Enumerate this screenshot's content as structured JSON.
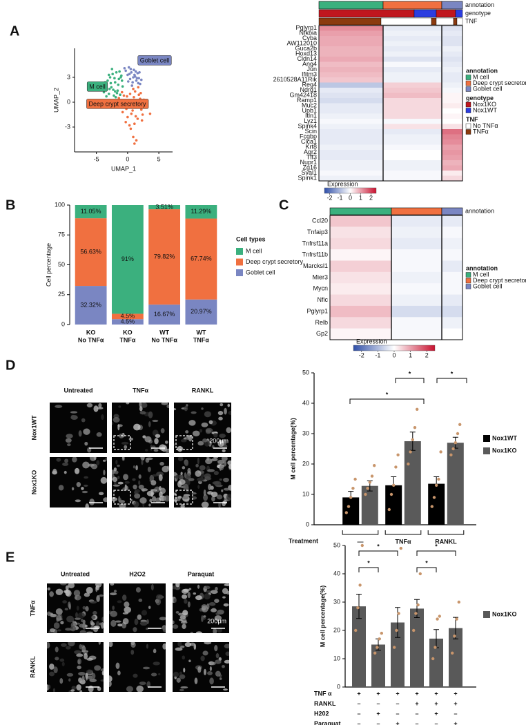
{
  "panel_labels": [
    "A",
    "B",
    "C",
    "D",
    "E"
  ],
  "micrographs": [
    {
      "columns": [
        "Untreated",
        "TNFα",
        "RANKL"
      ],
      "rows": [
        "Nox1WT",
        "Nox1KO"
      ],
      "scale_bar": "200μm"
    },
    {
      "columns": [
        "Untreated",
        "H2O2",
        "Paraquat"
      ],
      "rows": [
        "TNFα",
        "RANKL"
      ],
      "scale_bar": "200μm"
    }
  ],
  "chart_data": [
    {
      "type": "scatter",
      "xlabel": "UMAP_1",
      "ylabel": "UMAP_2",
      "xlim": [
        -8.5,
        7.2
      ],
      "ylim": [
        -6,
        6.5
      ],
      "xticks": [
        -5,
        0,
        5
      ],
      "yticks": [
        -3,
        0,
        3
      ],
      "series": [
        {
          "name": "M cell",
          "color": "#3bb07e",
          "x": [
            -3.8,
            -3.5,
            -3.2,
            -3,
            -2.8,
            -2.6,
            -2.4,
            -2.2,
            -2,
            -1.8,
            -1.6,
            -1.4,
            -1.2,
            -1,
            -0.8,
            -3.4,
            -3,
            -2.7,
            -2.3,
            -2.1,
            -1.9,
            -1.5,
            -1.3,
            -0.9,
            -2.5,
            -2.9,
            -1.7,
            -1.1,
            -3.6,
            -2
          ],
          "y": [
            1.2,
            2.0,
            2.6,
            1.0,
            3.0,
            1.8,
            3.4,
            0.8,
            2.4,
            3.6,
            1.4,
            2.8,
            0.9,
            3.2,
            1.9,
            0.7,
            3.3,
            2.3,
            1.5,
            2.9,
            0.6,
            2.1,
            3.7,
            2.6,
            4.0,
            1.6,
            1.1,
            3.0,
            2.4,
            1.3
          ]
        },
        {
          "name": "Deep crypt secretory",
          "color": "#f07040",
          "x": [
            -1.4,
            -1,
            -0.6,
            -0.2,
            0.2,
            0.6,
            1,
            1.4,
            1.8,
            2.2,
            2.6,
            -1.2,
            -0.8,
            -0.4,
            0,
            0.4,
            0.8,
            1.2,
            1.6,
            2,
            2.4,
            -0.9,
            -0.3,
            0.3,
            0.9,
            1.5,
            2.1,
            2.8,
            0.5,
            1.1,
            1.7,
            -0.1,
            0.7,
            1.3,
            0.9,
            1.1,
            1.4,
            2.3,
            3.6
          ],
          "y": [
            0.5,
            -0.2,
            0.8,
            -0.8,
            0.2,
            -1.4,
            0.6,
            -0.4,
            0.9,
            -0.9,
            0.3,
            -0.6,
            -1.2,
            0.1,
            -1.8,
            1.0,
            -1.0,
            1.3,
            -2.0,
            0.4,
            -1.5,
            1.2,
            -2.4,
            -2.8,
            1.6,
            -0.1,
            1.1,
            -0.3,
            -3.2,
            -2.6,
            1.8,
            0.7,
            2.0,
            -1.7,
            -4.2,
            -5.0,
            -4.6,
            -2.2,
            -1.4
          ]
        },
        {
          "name": "Goblet cell",
          "color": "#7a86c2",
          "x": [
            -0.3,
            0,
            0.2,
            0.4,
            0.6,
            0.8,
            1,
            1.2,
            1.4,
            1.6,
            1.8,
            2,
            0.1,
            0.5,
            0.9,
            1.3,
            1.7,
            2.2,
            0.3,
            0.7,
            1.1,
            1.5,
            1.9,
            -0.5
          ],
          "y": [
            3.8,
            3.3,
            4.2,
            2.8,
            3.6,
            2.4,
            3.9,
            3.1,
            2.6,
            3.5,
            2.9,
            2.2,
            2.5,
            4.0,
            3.0,
            3.7,
            2.3,
            2.7,
            3.4,
            2.0,
            3.3,
            2.9,
            3.6,
            4.1
          ]
        }
      ]
    },
    {
      "type": "heatmap",
      "columns_title": "annotation",
      "columns": [
        {
          "name": "M cell",
          "color": "#3bb07e"
        },
        {
          "name": "Deep crypt secretory",
          "color": "#f07040"
        },
        {
          "name": "Goblet cell",
          "color": "#7a86c2"
        }
      ],
      "genotype": {
        "title": "genotype",
        "items": [
          {
            "name": "Nox1KO",
            "color": "#c0161e"
          },
          {
            "name": "Nox1WT",
            "color": "#2b3de0"
          }
        ]
      },
      "tnf": {
        "title": "TNF",
        "items": [
          {
            "name": "No TNFα",
            "color": "#ffffff"
          },
          {
            "name": "TNFα",
            "color": "#8b3a0f"
          }
        ]
      },
      "rows": [
        "Pglyrp1",
        "Nfkbia",
        "Cyba",
        "AW112010",
        "Guca2b",
        "Hoxd13",
        "Cldn14",
        "Ang4",
        "Jun",
        "Ifitm3",
        "2610528A11Rik",
        "Reg4",
        "Ndrg1",
        "Gm42418",
        "Ramp1",
        "Muc2",
        "Upb1",
        "Itln1",
        "Lyz1",
        "Spink4",
        "Scin",
        "Fcgbp",
        "Clca1",
        "Krt8",
        "Agr2",
        "Tff3",
        "Nupr1",
        "Zg16",
        "Sval1",
        "Spink1"
      ],
      "values": [
        [
          1.2,
          -0.3,
          -0.4
        ],
        [
          1.0,
          -0.2,
          -0.3
        ],
        [
          0.9,
          -0.3,
          -0.4
        ],
        [
          0.9,
          -0.2,
          -0.4
        ],
        [
          0.8,
          -0.3,
          -0.2
        ],
        [
          0.8,
          -0.2,
          -0.3
        ],
        [
          0.9,
          -0.4,
          -0.4
        ],
        [
          0.7,
          -0.1,
          -0.3
        ],
        [
          0.8,
          -0.3,
          -0.2
        ],
        [
          0.7,
          -0.2,
          -0.3
        ],
        [
          0.6,
          -0.2,
          -0.3
        ],
        [
          -0.8,
          0.5,
          -0.2
        ],
        [
          -0.3,
          0.6,
          -0.1
        ],
        [
          -0.4,
          0.7,
          0.1
        ],
        [
          -0.5,
          0.4,
          0.1
        ],
        [
          -0.3,
          0.4,
          0.2
        ],
        [
          -0.3,
          0.4,
          0.0
        ],
        [
          -0.2,
          0.4,
          0.1
        ],
        [
          -0.1,
          -0.1,
          0.0
        ],
        [
          -0.2,
          0.3,
          0.3
        ],
        [
          -0.3,
          -0.3,
          1.5
        ],
        [
          -0.3,
          -0.2,
          1.3
        ],
        [
          -0.3,
          -0.2,
          1.2
        ],
        [
          -0.2,
          -0.1,
          1.0
        ],
        [
          -0.3,
          0.0,
          1.1
        ],
        [
          -0.3,
          0.0,
          1.0
        ],
        [
          -0.2,
          -0.2,
          0.8
        ],
        [
          -0.2,
          -0.2,
          0.9
        ],
        [
          -0.1,
          -0.1,
          0.2
        ],
        [
          -0.2,
          -0.1,
          0.4
        ]
      ],
      "clim": [
        -2.5,
        2.5
      ],
      "colorbar_title": "Expression",
      "colorbar_ticks": [
        -2,
        -1,
        0,
        1,
        2
      ]
    },
    {
      "type": "stacked_bar",
      "ylabel": "Cell percentage",
      "ylim": [
        0,
        100
      ],
      "yticks": [
        0,
        25,
        50,
        75,
        100
      ],
      "categories": [
        [
          "KO",
          "No TNFα"
        ],
        [
          "KO",
          "TNFα"
        ],
        [
          "WT",
          "No TNFα"
        ],
        [
          "WT",
          "TNFα"
        ]
      ],
      "legend_title": "Cell types",
      "series": [
        {
          "name": "M cell",
          "color": "#3bb07e",
          "values": [
            11.05,
            91,
            3.51,
            11.29
          ],
          "value_labels": [
            "11.05%",
            "91%",
            "3.51%",
            "11.29%"
          ]
        },
        {
          "name": "Deep crypt secretory",
          "color": "#f07040",
          "values": [
            56.63,
            4.5,
            79.82,
            67.74
          ],
          "value_labels": [
            "56.63%",
            "4.5%",
            "79.82%",
            "67.74%"
          ]
        },
        {
          "name": "Goblet cell",
          "color": "#7a86c2",
          "values": [
            32.32,
            4.5,
            16.67,
            20.97
          ],
          "value_labels": [
            "32.32%",
            "4.5%",
            "16.67%",
            "20.97%"
          ]
        }
      ]
    },
    {
      "type": "heatmap",
      "columns_title": "annotation",
      "columns": [
        {
          "name": "M cell",
          "color": "#3bb07e"
        },
        {
          "name": "Deep crypt secretory",
          "color": "#f07040"
        },
        {
          "name": "Goblet cell",
          "color": "#7a86c2"
        }
      ],
      "rows": [
        "Ccl20",
        "Tnfaip3",
        "Tnfrsf11a",
        "Tnfrsf11b",
        "Marcksl1",
        "Mier3",
        "Mycn",
        "Nfic",
        "Pglyrp1",
        "Relb",
        "Gp2"
      ],
      "values": [
        [
          0.6,
          -0.3,
          -0.3
        ],
        [
          0.3,
          -0.2,
          -0.1
        ],
        [
          0.4,
          -0.3,
          -0.2
        ],
        [
          0.1,
          -0.1,
          -0.1
        ],
        [
          0.5,
          -0.1,
          -0.3
        ],
        [
          0.3,
          -0.2,
          -0.1
        ],
        [
          0.2,
          -0.1,
          -0.1
        ],
        [
          0.4,
          -0.2,
          -0.3
        ],
        [
          0.7,
          -0.5,
          -0.5
        ],
        [
          0.4,
          -0.1,
          -0.2
        ],
        [
          0.1,
          -0.1,
          0.0
        ]
      ],
      "clim": [
        -2.5,
        2.5
      ],
      "colorbar_title": "Expression",
      "colorbar_ticks": [
        -2,
        -1,
        0,
        1,
        2
      ]
    },
    {
      "type": "bar",
      "ylabel": "M cell percentage(%)",
      "ylim": [
        0,
        50
      ],
      "yticks": [
        0,
        10,
        20,
        30,
        40,
        50
      ],
      "xlabel": "Treatment",
      "categories": [
        "—",
        "TNFα",
        "RANKL"
      ],
      "point_color": "#c8956b",
      "series": [
        {
          "name": "Nox1WT",
          "color": "#000000",
          "values": [
            9,
            13,
            13.5
          ],
          "errors": [
            2,
            2.8,
            2.3
          ],
          "points": [
            [
              4,
              6,
              9,
              12,
              15
            ],
            [
              5,
              10,
              13,
              19,
              23
            ],
            [
              6,
              9,
              13,
              15,
              24
            ]
          ]
        },
        {
          "name": "Nox1KO",
          "color": "#5a5a5a",
          "values": [
            12.8,
            27.5,
            27
          ],
          "errors": [
            1.7,
            3,
            1.8
          ],
          "points": [
            [
              10,
              12,
              14,
              16,
              19.5
            ],
            [
              20,
              24,
              28,
              32,
              38
            ],
            [
              23,
              25,
              27,
              30,
              33
            ]
          ]
        }
      ],
      "annotations": [
        "*",
        "*",
        "*"
      ]
    },
    {
      "type": "bar",
      "ylabel": "M cell percentage(%)",
      "ylim": [
        0,
        50
      ],
      "yticks": [
        0,
        10,
        20,
        30,
        40,
        50
      ],
      "point_color": "#c8956b",
      "series": [
        {
          "name": "Nox1KO",
          "color": "#595959",
          "values": [
            28.5,
            15,
            22.8,
            27.7,
            17.1,
            20.8
          ],
          "errors": [
            4.3,
            2,
            5.3,
            3.2,
            3.2,
            3.8
          ],
          "points": [
            [
              20,
              28,
              36,
              50
            ],
            [
              12,
              14,
              17,
              19
            ],
            [
              14,
              20,
              26,
              49
            ],
            [
              20,
              26,
              29,
              40
            ],
            [
              10,
              14,
              24,
              25
            ],
            [
              12,
              18,
              24,
              30
            ]
          ]
        }
      ],
      "conditions": [
        {
          "label": "TNF α",
          "signs": [
            "+",
            "+",
            "+",
            "+",
            "+",
            "+"
          ]
        },
        {
          "label": "RANKL",
          "signs": [
            "–",
            "–",
            "–",
            "+",
            "+",
            "+"
          ]
        },
        {
          "label": "H202",
          "signs": [
            "–",
            "+",
            "–",
            "–",
            "+",
            "–"
          ]
        },
        {
          "label": "Paraquat",
          "signs": [
            "–",
            "–",
            "+",
            "–",
            "–",
            "+"
          ]
        }
      ],
      "annotations": [
        "*",
        "*",
        "*",
        "*"
      ]
    }
  ]
}
